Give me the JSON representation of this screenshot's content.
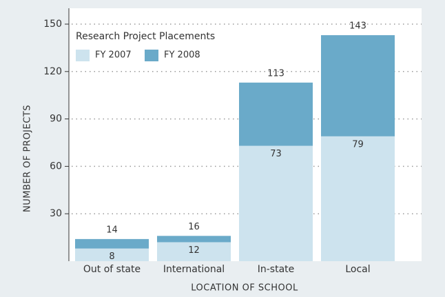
{
  "chart_data": {
    "type": "stacked_bar",
    "title": "Research Project Placements",
    "x_label": "LOCATION OF SCHOOL",
    "y_label": "NUMBER OF PROJECTS",
    "categories": [
      "Out of state",
      "International",
      "In-state",
      "Local"
    ],
    "series": [
      {
        "name": "FY 2007",
        "color": "#cde3ee",
        "values": [
          8,
          12,
          73,
          79
        ]
      },
      {
        "name": "FY 2008",
        "color": "#6aaac9",
        "values": [
          6,
          4,
          40,
          64
        ]
      }
    ],
    "totals": [
      14,
      16,
      113,
      143
    ],
    "ylim": [
      0,
      150
    ],
    "yticks": [
      30,
      60,
      90,
      120,
      150
    ],
    "grid": true
  }
}
